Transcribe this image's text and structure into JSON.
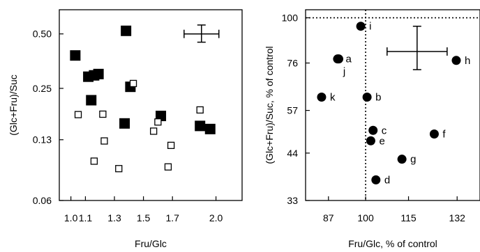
{
  "chart_data": [
    {
      "type": "scatter",
      "title": "",
      "xlabel": "Fru/Glc",
      "ylabel": "(Glc+Fru)/Suc",
      "y_scale": "log",
      "xlim": [
        0.92,
        2.18
      ],
      "ylim": [
        0.06,
        0.68
      ],
      "x_ticks": [
        1.0,
        1.1,
        1.3,
        1.5,
        1.7,
        2.0
      ],
      "x_tick_labels": [
        "1.0",
        "1.1",
        "1.3",
        "1.5",
        "1.7",
        "2.0"
      ],
      "y_ticks": [
        0.06,
        0.13,
        0.25,
        0.5
      ],
      "y_tick_labels": [
        "0.06",
        "0.13",
        "0.25",
        "0.50"
      ],
      "grid": false,
      "series": [
        {
          "marker": "filled-square",
          "points": [
            {
              "x": 1.03,
              "y": 0.38
            },
            {
              "x": 1.12,
              "y": 0.29
            },
            {
              "x": 1.16,
              "y": 0.295
            },
            {
              "x": 1.19,
              "y": 0.3
            },
            {
              "x": 1.38,
              "y": 0.52
            },
            {
              "x": 1.41,
              "y": 0.255
            },
            {
              "x": 1.14,
              "y": 0.215
            },
            {
              "x": 1.37,
              "y": 0.16
            },
            {
              "x": 1.62,
              "y": 0.176
            },
            {
              "x": 1.89,
              "y": 0.155
            },
            {
              "x": 1.96,
              "y": 0.149
            }
          ]
        },
        {
          "marker": "open-square",
          "points": [
            {
              "x": 1.05,
              "y": 0.179
            },
            {
              "x": 1.43,
              "y": 0.266
            },
            {
              "x": 1.22,
              "y": 0.18
            },
            {
              "x": 1.6,
              "y": 0.163
            },
            {
              "x": 1.57,
              "y": 0.145
            },
            {
              "x": 1.89,
              "y": 0.19
            },
            {
              "x": 1.23,
              "y": 0.128
            },
            {
              "x": 1.69,
              "y": 0.121
            },
            {
              "x": 1.16,
              "y": 0.099
            },
            {
              "x": 1.33,
              "y": 0.09
            },
            {
              "x": 1.67,
              "y": 0.092
            }
          ]
        }
      ],
      "error_bar": {
        "x": 1.9,
        "y": 0.5,
        "x_err": 0.12,
        "y_err_low": 0.05,
        "y_err_high": 0.06
      }
    },
    {
      "type": "scatter",
      "title": "",
      "xlabel": "Fru/Glc, % of control",
      "ylabel": "(Glc+Fru)/Suc, % of control",
      "y_scale": "log",
      "xlim": [
        79,
        140
      ],
      "ylim": [
        33,
        105
      ],
      "x_ticks": [
        87,
        100,
        115,
        132
      ],
      "x_tick_labels": [
        "87",
        "100",
        "115",
        "132"
      ],
      "y_ticks": [
        33,
        44,
        57,
        76,
        100
      ],
      "y_tick_labels": [
        "33",
        "44",
        "57",
        "76",
        "100"
      ],
      "grid": false,
      "reference_lines": [
        {
          "orientation": "horizontal",
          "value": 100,
          "style": "dotted"
        },
        {
          "orientation": "vertical",
          "value": 100,
          "style": "dotted"
        }
      ],
      "points": [
        {
          "label": "a",
          "x": 90.6,
          "y": 77.9
        },
        {
          "label": "b",
          "x": 100.5,
          "y": 61.8
        },
        {
          "label": "c",
          "x": 102.6,
          "y": 50.5
        },
        {
          "label": "d",
          "x": 103.6,
          "y": 37.4
        },
        {
          "label": "e",
          "x": 101.8,
          "y": 47.4
        },
        {
          "label": "f",
          "x": 124.0,
          "y": 49.4
        },
        {
          "label": "g",
          "x": 112.7,
          "y": 42.4
        },
        {
          "label": "h",
          "x": 131.7,
          "y": 77.2
        },
        {
          "label": "i",
          "x": 98.3,
          "y": 95.0
        },
        {
          "label": "j",
          "x": 90.2,
          "y": 77.9
        },
        {
          "label": "k",
          "x": 84.6,
          "y": 61.8
        }
      ],
      "error_bar": {
        "x": 118,
        "y": 81.5,
        "x_err": 10.5,
        "y_err_low": 8.5,
        "y_err_high": 13.5
      }
    }
  ]
}
